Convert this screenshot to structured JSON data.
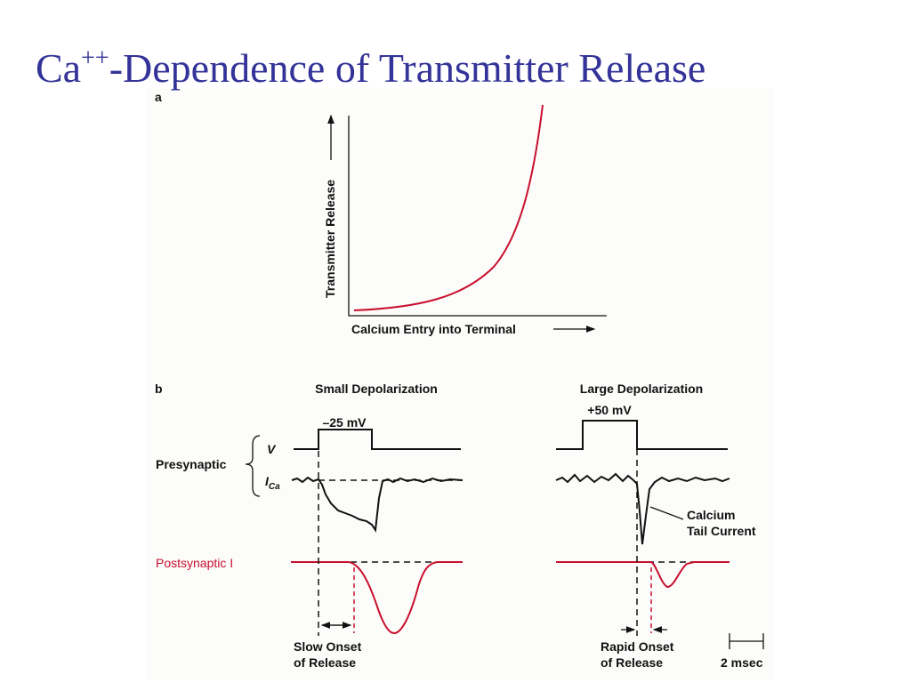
{
  "title": {
    "main": "Ca",
    "superscript": "++",
    "rest": "-Dependence of Transmitter Release"
  },
  "panel_a": {
    "label": "a",
    "y_axis_label": "Transmitter Release",
    "x_axis_label": "Calcium Entry into Terminal"
  },
  "panel_b": {
    "label": "b",
    "small_heading": "Small Depolarization",
    "large_heading": "Large Depolarization",
    "small_voltage": "–25 mV",
    "large_voltage": "+50 mV",
    "presynaptic": "Presynaptic",
    "v_label": "V",
    "i_label": "I",
    "i_subscript": "Ca",
    "postsynaptic": "Postsynaptic I",
    "tail_current": [
      "Calcium",
      "Tail Current"
    ],
    "slow_onset": [
      "Slow Onset",
      "of Release"
    ],
    "rapid_onset": [
      "Rapid Onset",
      "of Release"
    ],
    "scale": "2 msec"
  }
}
